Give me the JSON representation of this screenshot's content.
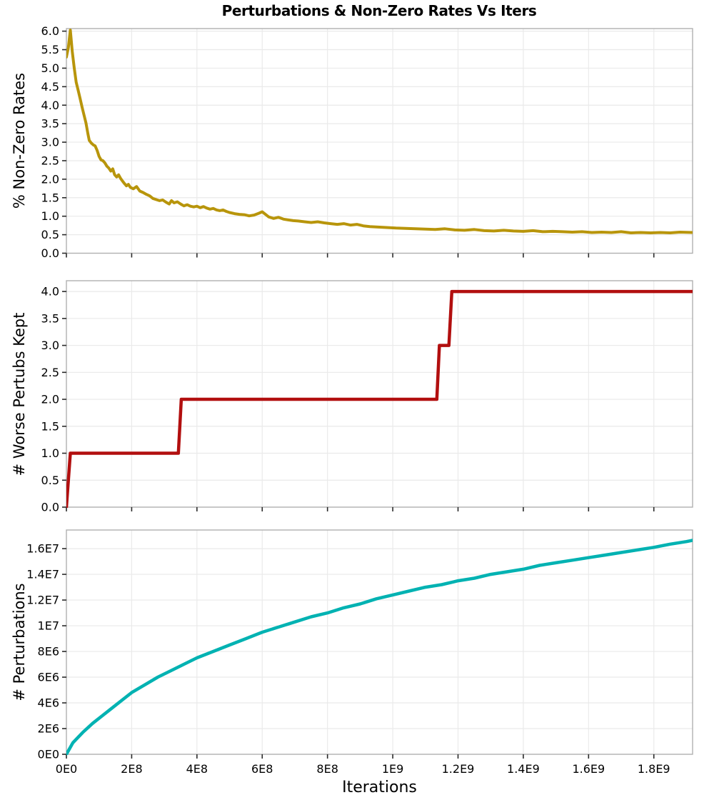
{
  "title": "Perturbations & Non-Zero Rates Vs Iters",
  "xlabel": "Iterations",
  "colors": {
    "gold": "#B8950B",
    "red": "#B20F0F",
    "cyan": "#00B2B2",
    "grid": "#EAEAEA",
    "border": "#B0B0B0",
    "tick": "#2A2A2A",
    "text": "#000000",
    "background": "#FFFFFF"
  },
  "axes": {
    "x": {
      "label": "Iterations",
      "unit_scale": "1E9",
      "lim": [
        0,
        1.9187
      ],
      "ticks": {
        "values": [
          0,
          0.2,
          0.4,
          0.6,
          0.8,
          1.0,
          1.2,
          1.4,
          1.6,
          1.8
        ],
        "labels": [
          "0E0",
          "2E8",
          "4E8",
          "6E8",
          "8E8",
          "1E9",
          "1.2E9",
          "1.4E9",
          "1.6E9",
          "1.8E9"
        ]
      }
    }
  },
  "chart_data": [
    {
      "type": "line",
      "series_name": "percent-non-zero-rates",
      "ylabel": "% Non-Zero Rates",
      "color_key": "gold",
      "line_width": 4,
      "grid": true,
      "legend": "none",
      "show_x_labels": false,
      "ylim": [
        0,
        6.07
      ],
      "yticks": {
        "values": [
          0,
          0.5,
          1.0,
          1.5,
          2.0,
          2.5,
          3.0,
          3.5,
          4.0,
          4.5,
          5.0,
          5.5,
          6.0
        ],
        "labels": [
          "0.0",
          "0.5",
          "1.0",
          "1.5",
          "2.0",
          "2.5",
          "3.0",
          "3.5",
          "4.0",
          "4.5",
          "5.0",
          "5.5",
          "6.0"
        ]
      },
      "points": [
        [
          0.0,
          5.3
        ],
        [
          0.006,
          5.55
        ],
        [
          0.012,
          6.03
        ],
        [
          0.018,
          5.45
        ],
        [
          0.024,
          5.0
        ],
        [
          0.03,
          4.62
        ],
        [
          0.036,
          4.4
        ],
        [
          0.042,
          4.18
        ],
        [
          0.048,
          3.95
        ],
        [
          0.054,
          3.73
        ],
        [
          0.06,
          3.52
        ],
        [
          0.066,
          3.22
        ],
        [
          0.07,
          3.05
        ],
        [
          0.076,
          2.98
        ],
        [
          0.082,
          2.93
        ],
        [
          0.088,
          2.9
        ],
        [
          0.094,
          2.78
        ],
        [
          0.1,
          2.62
        ],
        [
          0.106,
          2.52
        ],
        [
          0.112,
          2.5
        ],
        [
          0.118,
          2.44
        ],
        [
          0.124,
          2.35
        ],
        [
          0.13,
          2.3
        ],
        [
          0.136,
          2.22
        ],
        [
          0.142,
          2.28
        ],
        [
          0.148,
          2.12
        ],
        [
          0.154,
          2.06
        ],
        [
          0.16,
          2.12
        ],
        [
          0.166,
          2.02
        ],
        [
          0.172,
          1.95
        ],
        [
          0.178,
          1.88
        ],
        [
          0.184,
          1.82
        ],
        [
          0.19,
          1.86
        ],
        [
          0.196,
          1.78
        ],
        [
          0.205,
          1.74
        ],
        [
          0.215,
          1.8
        ],
        [
          0.225,
          1.68
        ],
        [
          0.235,
          1.64
        ],
        [
          0.245,
          1.59
        ],
        [
          0.255,
          1.55
        ],
        [
          0.265,
          1.48
        ],
        [
          0.275,
          1.45
        ],
        [
          0.285,
          1.42
        ],
        [
          0.295,
          1.44
        ],
        [
          0.305,
          1.38
        ],
        [
          0.315,
          1.33
        ],
        [
          0.322,
          1.42
        ],
        [
          0.33,
          1.36
        ],
        [
          0.34,
          1.39
        ],
        [
          0.35,
          1.33
        ],
        [
          0.36,
          1.28
        ],
        [
          0.37,
          1.31
        ],
        [
          0.38,
          1.27
        ],
        [
          0.39,
          1.25
        ],
        [
          0.4,
          1.27
        ],
        [
          0.41,
          1.23
        ],
        [
          0.42,
          1.26
        ],
        [
          0.43,
          1.22
        ],
        [
          0.44,
          1.19
        ],
        [
          0.45,
          1.21
        ],
        [
          0.46,
          1.17
        ],
        [
          0.47,
          1.15
        ],
        [
          0.48,
          1.17
        ],
        [
          0.49,
          1.13
        ],
        [
          0.5,
          1.1
        ],
        [
          0.515,
          1.07
        ],
        [
          0.53,
          1.05
        ],
        [
          0.545,
          1.04
        ],
        [
          0.56,
          1.01
        ],
        [
          0.575,
          1.03
        ],
        [
          0.59,
          1.08
        ],
        [
          0.6,
          1.12
        ],
        [
          0.61,
          1.05
        ],
        [
          0.62,
          0.98
        ],
        [
          0.635,
          0.94
        ],
        [
          0.65,
          0.97
        ],
        [
          0.665,
          0.92
        ],
        [
          0.68,
          0.9
        ],
        [
          0.695,
          0.88
        ],
        [
          0.71,
          0.87
        ],
        [
          0.73,
          0.85
        ],
        [
          0.75,
          0.83
        ],
        [
          0.77,
          0.85
        ],
        [
          0.79,
          0.82
        ],
        [
          0.81,
          0.8
        ],
        [
          0.83,
          0.78
        ],
        [
          0.85,
          0.8
        ],
        [
          0.87,
          0.76
        ],
        [
          0.89,
          0.78
        ],
        [
          0.91,
          0.74
        ],
        [
          0.93,
          0.72
        ],
        [
          0.95,
          0.71
        ],
        [
          0.97,
          0.7
        ],
        [
          0.99,
          0.69
        ],
        [
          1.01,
          0.68
        ],
        [
          1.04,
          0.67
        ],
        [
          1.07,
          0.66
        ],
        [
          1.1,
          0.65
        ],
        [
          1.13,
          0.64
        ],
        [
          1.16,
          0.66
        ],
        [
          1.19,
          0.63
        ],
        [
          1.22,
          0.62
        ],
        [
          1.25,
          0.64
        ],
        [
          1.28,
          0.61
        ],
        [
          1.31,
          0.6
        ],
        [
          1.34,
          0.62
        ],
        [
          1.37,
          0.6
        ],
        [
          1.4,
          0.59
        ],
        [
          1.43,
          0.61
        ],
        [
          1.46,
          0.58
        ],
        [
          1.49,
          0.59
        ],
        [
          1.52,
          0.58
        ],
        [
          1.55,
          0.57
        ],
        [
          1.58,
          0.58
        ],
        [
          1.61,
          0.56
        ],
        [
          1.64,
          0.57
        ],
        [
          1.67,
          0.56
        ],
        [
          1.7,
          0.58
        ],
        [
          1.73,
          0.55
        ],
        [
          1.76,
          0.56
        ],
        [
          1.79,
          0.55
        ],
        [
          1.82,
          0.56
        ],
        [
          1.85,
          0.55
        ],
        [
          1.88,
          0.57
        ],
        [
          1.919,
          0.56
        ]
      ]
    },
    {
      "type": "line",
      "series_name": "worse-perturbations-kept",
      "ylabel": "# Worse Pertubs Kept",
      "color_key": "red",
      "line_width": 4.5,
      "grid": true,
      "legend": "none",
      "show_x_labels": false,
      "ylim": [
        0,
        4.2
      ],
      "yticks": {
        "values": [
          0,
          0.5,
          1.0,
          1.5,
          2.0,
          2.5,
          3.0,
          3.5,
          4.0
        ],
        "labels": [
          "0.0",
          "0.5",
          "1.0",
          "1.5",
          "2.0",
          "2.5",
          "3.0",
          "3.5",
          "4.0"
        ]
      },
      "points": [
        [
          0.0,
          0
        ],
        [
          0.012,
          1
        ],
        [
          0.343,
          1
        ],
        [
          0.352,
          2
        ],
        [
          1.135,
          2
        ],
        [
          1.143,
          3
        ],
        [
          1.172,
          3
        ],
        [
          1.181,
          4
        ],
        [
          1.919,
          4
        ]
      ]
    },
    {
      "type": "line",
      "series_name": "num-perturbations",
      "ylabel": "# Perturbations",
      "color_key": "cyan",
      "line_width": 4.5,
      "grid": true,
      "legend": "none",
      "show_x_labels": true,
      "y_unit_scale": "1E6",
      "ylim": [
        0,
        17.45
      ],
      "yticks": {
        "values": [
          0,
          2,
          4,
          6,
          8,
          10,
          12,
          14,
          16
        ],
        "labels": [
          "0E0",
          "2E6",
          "4E6",
          "6E6",
          "8E6",
          "1E7",
          "1.2E7",
          "1.4E7",
          "1.6E7"
        ]
      },
      "points": [
        [
          0.0,
          0.0
        ],
        [
          0.02,
          0.9
        ],
        [
          0.05,
          1.7
        ],
        [
          0.08,
          2.4
        ],
        [
          0.11,
          3.0
        ],
        [
          0.14,
          3.6
        ],
        [
          0.17,
          4.2
        ],
        [
          0.2,
          4.8
        ],
        [
          0.24,
          5.4
        ],
        [
          0.28,
          6.0
        ],
        [
          0.32,
          6.5
        ],
        [
          0.36,
          7.0
        ],
        [
          0.4,
          7.5
        ],
        [
          0.45,
          8.0
        ],
        [
          0.5,
          8.5
        ],
        [
          0.55,
          9.0
        ],
        [
          0.6,
          9.5
        ],
        [
          0.65,
          9.9
        ],
        [
          0.7,
          10.3
        ],
        [
          0.75,
          10.7
        ],
        [
          0.8,
          11.0
        ],
        [
          0.85,
          11.4
        ],
        [
          0.9,
          11.7
        ],
        [
          0.95,
          12.1
        ],
        [
          1.0,
          12.4
        ],
        [
          1.05,
          12.7
        ],
        [
          1.1,
          13.0
        ],
        [
          1.15,
          13.2
        ],
        [
          1.2,
          13.5
        ],
        [
          1.25,
          13.7
        ],
        [
          1.3,
          14.0
        ],
        [
          1.35,
          14.2
        ],
        [
          1.4,
          14.4
        ],
        [
          1.45,
          14.7
        ],
        [
          1.5,
          14.9
        ],
        [
          1.55,
          15.1
        ],
        [
          1.6,
          15.3
        ],
        [
          1.65,
          15.5
        ],
        [
          1.7,
          15.7
        ],
        [
          1.75,
          15.9
        ],
        [
          1.8,
          16.1
        ],
        [
          1.85,
          16.35
        ],
        [
          1.9,
          16.55
        ],
        [
          1.919,
          16.65
        ]
      ]
    }
  ]
}
